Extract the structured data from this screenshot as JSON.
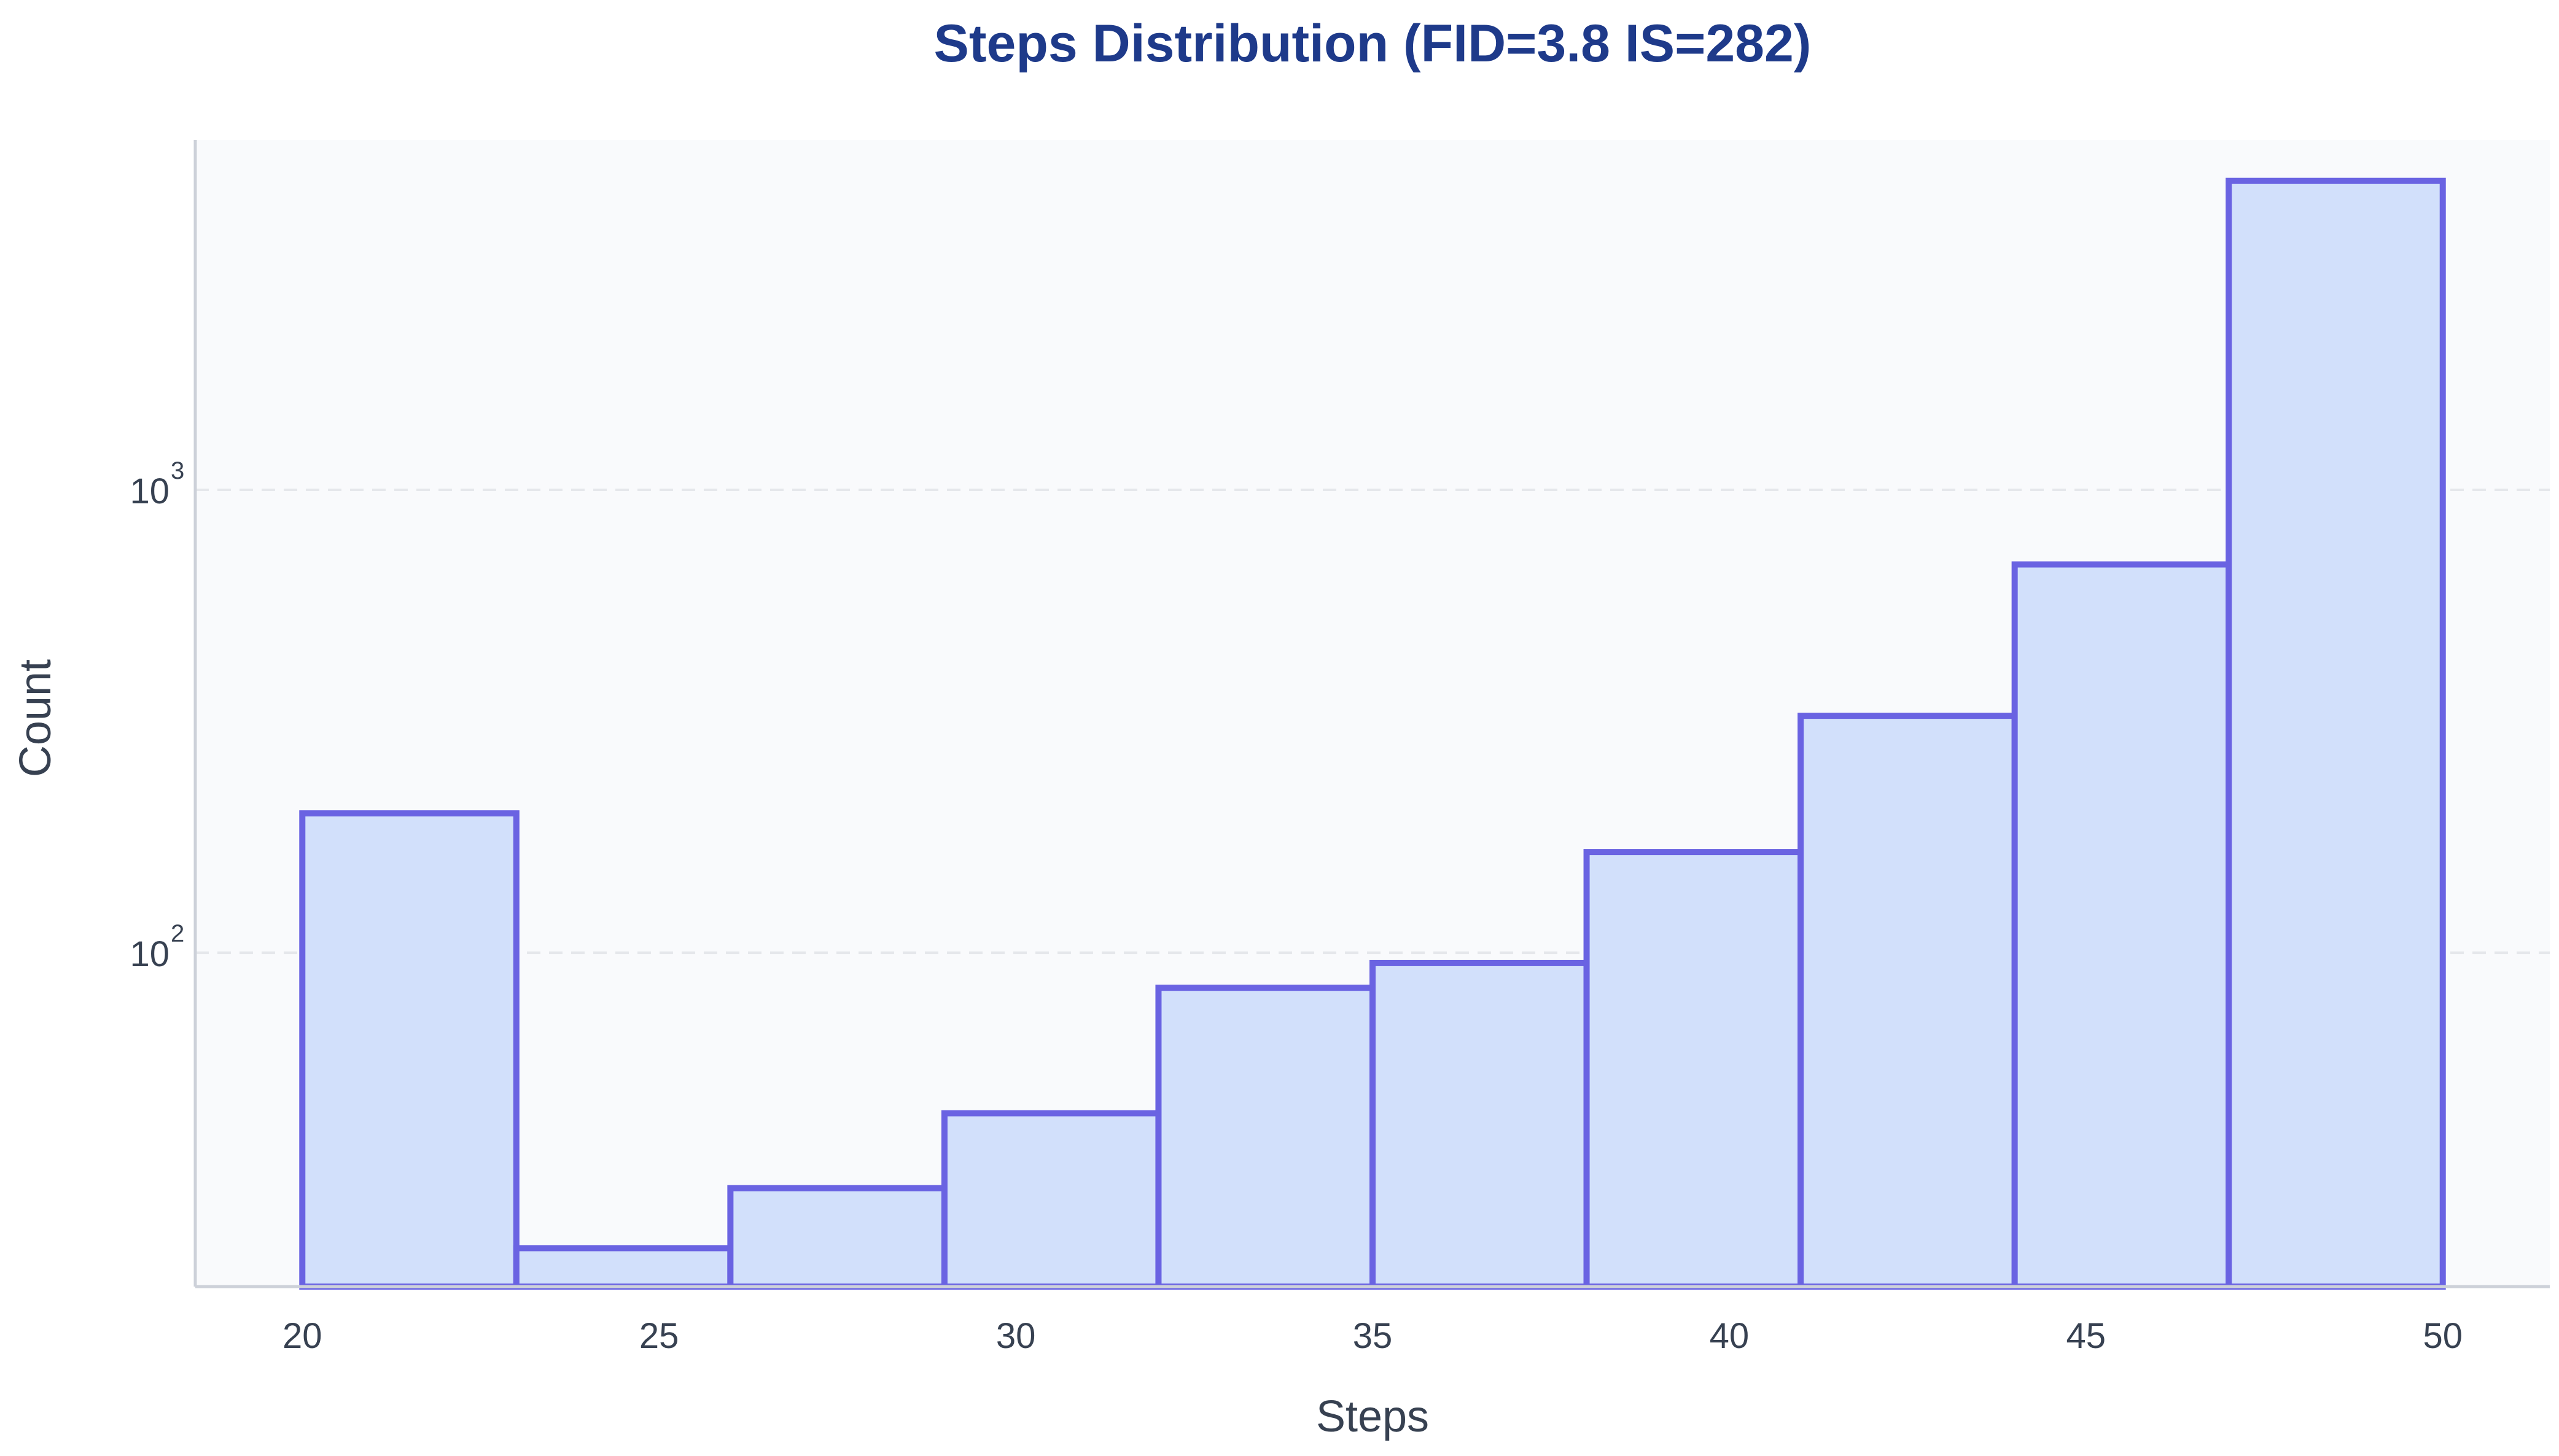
{
  "chart_data": {
    "type": "bar",
    "title": "Steps Distribution (FID=3.8 IS=282)",
    "xlabel": "Steps",
    "ylabel": "Count",
    "y_scale": "log",
    "ylim": [
      19,
      5700
    ],
    "xlim": [
      18.5,
      51.5
    ],
    "grid": "y-major-dashed",
    "legend": "none",
    "bins": [
      {
        "x0": 20,
        "x1": 23,
        "count": 200
      },
      {
        "x0": 23,
        "x1": 26,
        "count": 23
      },
      {
        "x0": 26,
        "x1": 29,
        "count": 31
      },
      {
        "x0": 29,
        "x1": 32,
        "count": 45
      },
      {
        "x0": 32,
        "x1": 35,
        "count": 84
      },
      {
        "x0": 35,
        "x1": 38,
        "count": 95
      },
      {
        "x0": 38,
        "x1": 41,
        "count": 165
      },
      {
        "x0": 41,
        "x1": 44,
        "count": 325
      },
      {
        "x0": 44,
        "x1": 47,
        "count": 690
      },
      {
        "x0": 47,
        "x1": 50,
        "count": 4650
      }
    ],
    "x_ticks": [
      20,
      25,
      30,
      35,
      40,
      45,
      50
    ],
    "y_ticks": [
      {
        "value": 100,
        "base": "10",
        "exp": "2"
      },
      {
        "value": 1000,
        "base": "10",
        "exp": "3"
      }
    ],
    "colors": {
      "bar_fill": "#d2e0fb",
      "bar_edge": "#6a63e2",
      "title": "#1e3a8a",
      "text": "#374151",
      "plot_bg": "#f9fafc",
      "axis": "#cdd1d9",
      "grid": "#e5e7eb"
    }
  }
}
